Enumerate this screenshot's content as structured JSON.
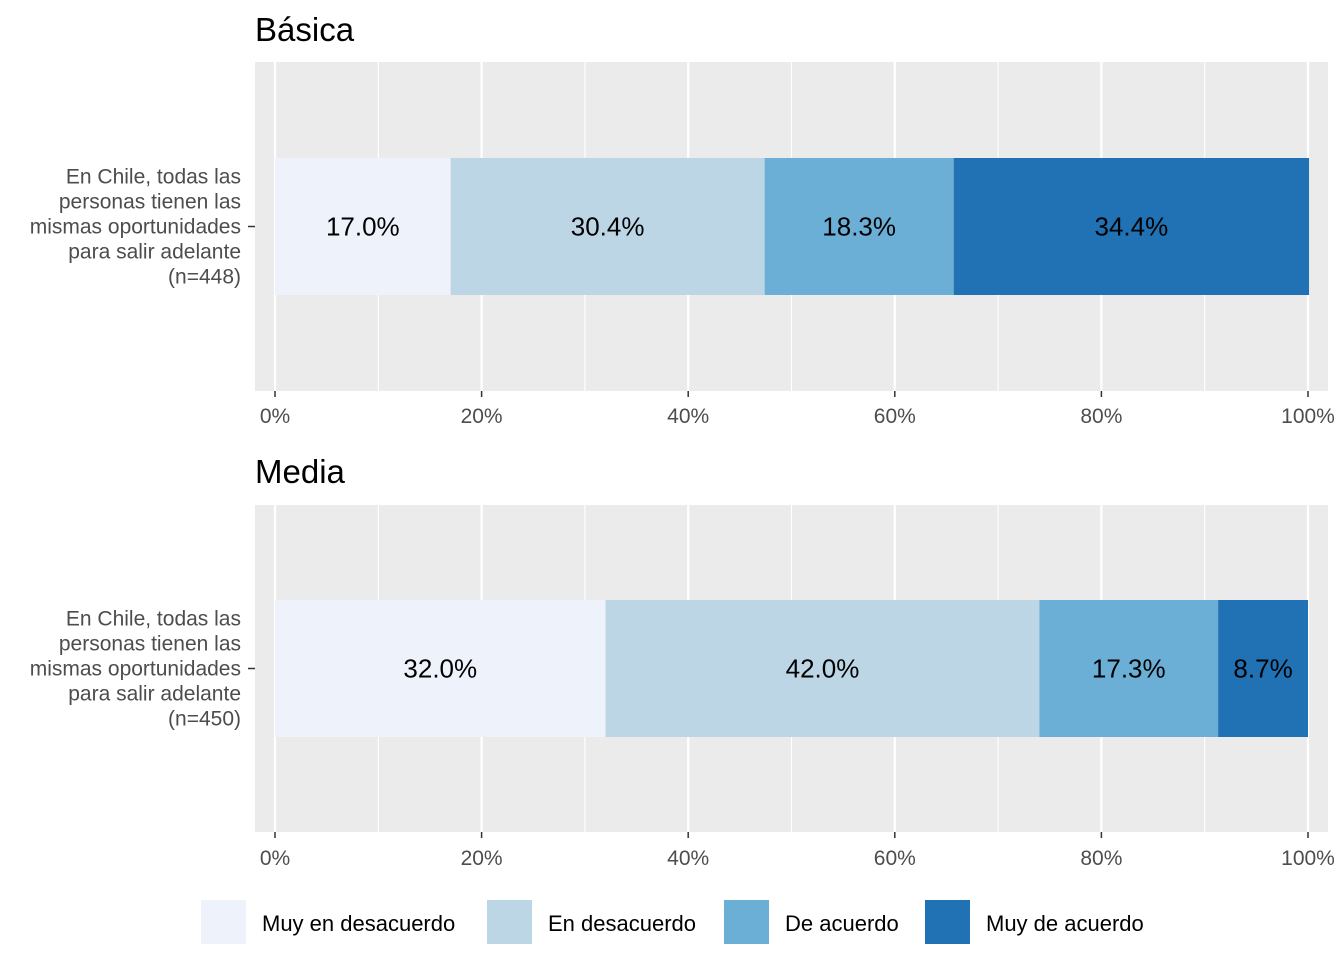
{
  "colors": {
    "panel_bg": "#ebebeb",
    "grid": "#ffffff",
    "segments": [
      "#eef2fb",
      "#bdd6e6",
      "#6baed6",
      "#2171b5"
    ]
  },
  "legend": {
    "items": [
      "Muy en desacuerdo",
      "En desacuerdo",
      "De acuerdo",
      "Muy de acuerdo"
    ]
  },
  "chart_data": [
    {
      "type": "bar",
      "orientation": "horizontal-stacked",
      "title": "Básica",
      "categories": [
        "En Chile, todas las personas tienen las mismas oportunidades para salir adelante (n=448)"
      ],
      "category_lines": [
        "En Chile, todas las",
        "personas tienen las",
        "mismas oportunidades",
        "para salir adelante",
        "(n=448)"
      ],
      "series": [
        {
          "name": "Muy en desacuerdo",
          "values": [
            17.0
          ],
          "label": "17.0%"
        },
        {
          "name": "En desacuerdo",
          "values": [
            30.4
          ],
          "label": "30.4%"
        },
        {
          "name": "De acuerdo",
          "values": [
            18.3
          ],
          "label": "18.3%"
        },
        {
          "name": "Muy de acuerdo",
          "values": [
            34.4
          ],
          "label": "34.4%"
        }
      ],
      "xlim": [
        0,
        100
      ],
      "xticks": [
        0,
        20,
        40,
        60,
        80,
        100
      ],
      "xtick_labels": [
        "0%",
        "20%",
        "40%",
        "60%",
        "80%",
        "100%"
      ],
      "grid": true,
      "legend_position": "bottom"
    },
    {
      "type": "bar",
      "orientation": "horizontal-stacked",
      "title": "Media",
      "categories": [
        "En Chile, todas las personas tienen las mismas oportunidades para salir adelante (n=450)"
      ],
      "category_lines": [
        "En Chile, todas las",
        "personas tienen las",
        "mismas oportunidades",
        "para salir adelante",
        "(n=450)"
      ],
      "series": [
        {
          "name": "Muy en desacuerdo",
          "values": [
            32.0
          ],
          "label": "32.0%"
        },
        {
          "name": "En desacuerdo",
          "values": [
            42.0
          ],
          "label": "42.0%"
        },
        {
          "name": "De acuerdo",
          "values": [
            17.3
          ],
          "label": "17.3%"
        },
        {
          "name": "Muy de acuerdo",
          "values": [
            8.7
          ],
          "label": "8.7%"
        }
      ],
      "xlim": [
        0,
        100
      ],
      "xticks": [
        0,
        20,
        40,
        60,
        80,
        100
      ],
      "xtick_labels": [
        "0%",
        "20%",
        "40%",
        "60%",
        "80%",
        "100%"
      ],
      "grid": true,
      "legend_position": "bottom"
    }
  ]
}
